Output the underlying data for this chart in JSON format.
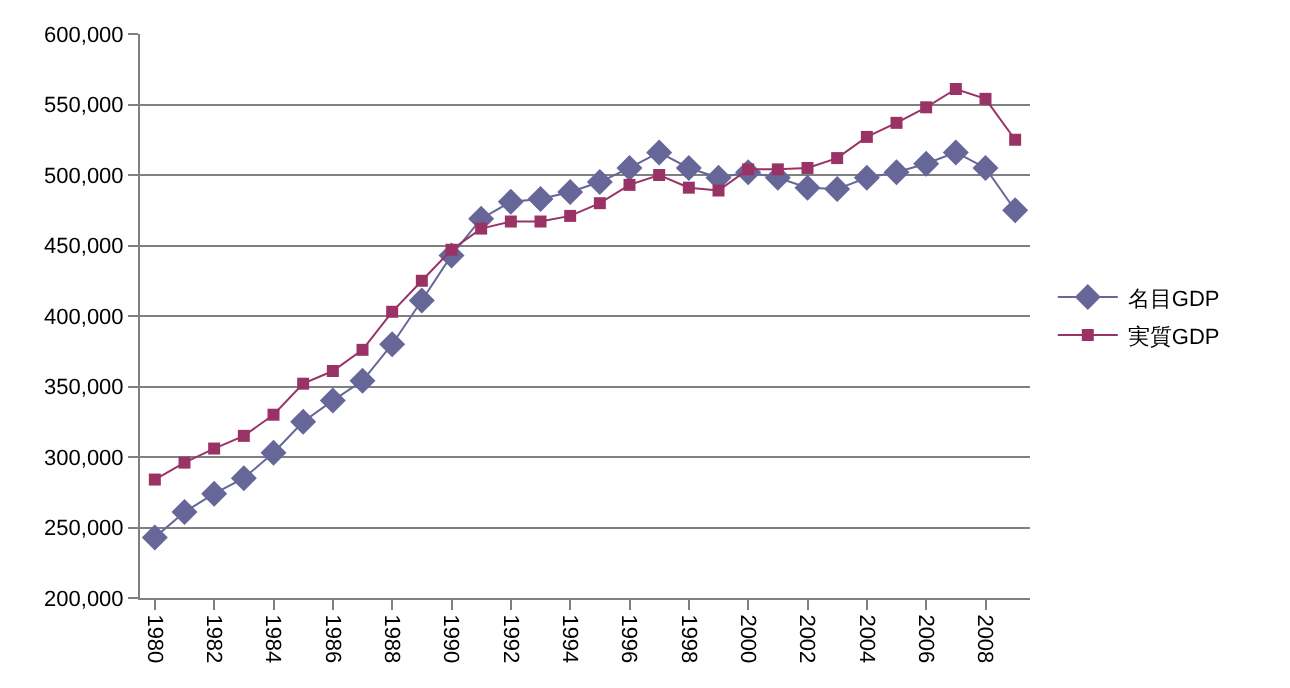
{
  "chart_data": {
    "type": "line",
    "x": [
      1980,
      1981,
      1982,
      1983,
      1984,
      1985,
      1986,
      1987,
      1988,
      1989,
      1990,
      1991,
      1992,
      1993,
      1994,
      1995,
      1996,
      1997,
      1998,
      1999,
      2000,
      2001,
      2002,
      2003,
      2004,
      2005,
      2006,
      2007,
      2008,
      2009
    ],
    "series": [
      {
        "name": "名目GDP",
        "color": "#666699",
        "marker": "diamond",
        "values": [
          243000,
          261000,
          274000,
          285000,
          303000,
          325000,
          340000,
          354000,
          380000,
          411000,
          443000,
          469000,
          481000,
          483000,
          488000,
          495000,
          505000,
          516000,
          505000,
          498000,
          502000,
          498000,
          491000,
          490000,
          498000,
          502000,
          508000,
          516000,
          505000,
          475000
        ]
      },
      {
        "name": "実質GDP",
        "color": "#993366",
        "marker": "square",
        "values": [
          284000,
          296000,
          306000,
          315000,
          330000,
          352000,
          361000,
          376000,
          403000,
          425000,
          447000,
          462000,
          467000,
          467000,
          471000,
          480000,
          493000,
          500000,
          491000,
          489000,
          504000,
          504000,
          505000,
          512000,
          527000,
          537000,
          548000,
          561000,
          554000,
          525000
        ]
      }
    ],
    "xlim": [
      1979.5,
      2009.5
    ],
    "xticks": [
      1980,
      1982,
      1984,
      1986,
      1988,
      1990,
      1992,
      1994,
      1996,
      1998,
      2000,
      2002,
      2004,
      2006,
      2008
    ],
    "ylim": [
      200000,
      600000
    ],
    "yticks": [
      {
        "value": 200000,
        "label": "200,000"
      },
      {
        "value": 250000,
        "label": "250,000"
      },
      {
        "value": 300000,
        "label": "300,000"
      },
      {
        "value": 350000,
        "label": "350,000"
      },
      {
        "value": 400000,
        "label": "400,000"
      },
      {
        "value": 450000,
        "label": "450,000"
      },
      {
        "value": 500000,
        "label": "500,000"
      },
      {
        "value": 550000,
        "label": "550,000"
      },
      {
        "value": 600000,
        "label": "600,000"
      }
    ],
    "grid": "y",
    "legend": "right",
    "line_style": "solid"
  }
}
